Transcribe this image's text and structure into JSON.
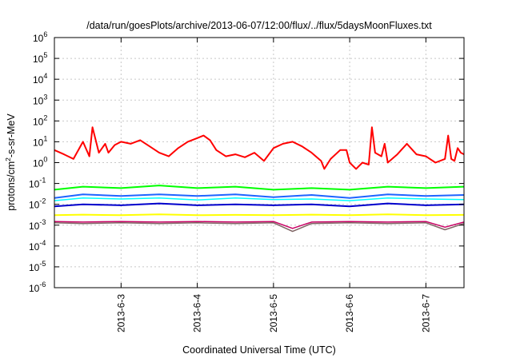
{
  "chart_data": {
    "type": "line",
    "title": "/data/run/goesPlots/archive/2013-06-07/12:00/flux/../flux/5daysMoonFluxes.txt",
    "xlabel": "Coordinated Universal Time (UTC)",
    "ylabel": "protons/cm2-s-sr-MeV",
    "ylabel_parts": {
      "pre": "protons/cm",
      "sup": "2",
      "post": "-s-sr-MeV"
    },
    "yscale": "log",
    "ylim": [
      "1e-6",
      "1e6"
    ],
    "xlim": [
      "2013-06-02 03:00",
      "2013-06-07 12:00"
    ],
    "grid": true,
    "x_ticks": [
      {
        "label": "2013-6-3",
        "at": "2013-06-03"
      },
      {
        "label": "2013-6-4",
        "at": "2013-06-04"
      },
      {
        "label": "2013-6-5",
        "at": "2013-06-05"
      },
      {
        "label": "2013-6-6",
        "at": "2013-06-06"
      },
      {
        "label": "2013-6-7",
        "at": "2013-06-07"
      }
    ],
    "y_ticks": [
      {
        "exp": 6,
        "base": "10",
        "sup": "6"
      },
      {
        "exp": 5,
        "base": "10",
        "sup": "5"
      },
      {
        "exp": 4,
        "base": "10",
        "sup": "4"
      },
      {
        "exp": 3,
        "base": "10",
        "sup": "3"
      },
      {
        "exp": 2,
        "base": "10",
        "sup": "2"
      },
      {
        "exp": 1,
        "base": "10",
        "sup": "1"
      },
      {
        "exp": 0,
        "base": "10",
        "sup": "0"
      },
      {
        "exp": -1,
        "base": "10",
        "sup": "-1"
      },
      {
        "exp": -2,
        "base": "10",
        "sup": "-2"
      },
      {
        "exp": -3,
        "base": "10",
        "sup": "-3"
      },
      {
        "exp": -4,
        "base": "10",
        "sup": "-4"
      },
      {
        "exp": -5,
        "base": "10",
        "sup": "-5"
      },
      {
        "exp": -6,
        "base": "10",
        "sup": "-6"
      }
    ],
    "series": [
      {
        "color": "#ff0000",
        "width": 2,
        "x": [
          "2013-06-02 03:00",
          "2013-06-02 06:00",
          "2013-06-02 09:00",
          "2013-06-02 12:00",
          "2013-06-02 14:00",
          "2013-06-02 15:00",
          "2013-06-02 17:00",
          "2013-06-02 19:00",
          "2013-06-02 20:00",
          "2013-06-02 22:00",
          "2013-06-03 00:00",
          "2013-06-03 03:00",
          "2013-06-03 06:00",
          "2013-06-03 09:00",
          "2013-06-03 12:00",
          "2013-06-03 15:00",
          "2013-06-03 18:00",
          "2013-06-03 21:00",
          "2013-06-04 00:00",
          "2013-06-04 02:00",
          "2013-06-04 04:00",
          "2013-06-04 06:00",
          "2013-06-04 09:00",
          "2013-06-04 12:00",
          "2013-06-04 15:00",
          "2013-06-04 18:00",
          "2013-06-04 21:00",
          "2013-06-05 00:00",
          "2013-06-05 03:00",
          "2013-06-05 06:00",
          "2013-06-05 09:00",
          "2013-06-05 12:00",
          "2013-06-05 15:00",
          "2013-06-05 16:00",
          "2013-06-05 18:00",
          "2013-06-05 21:00",
          "2013-06-05 23:00",
          "2013-06-06 00:00",
          "2013-06-06 02:00",
          "2013-06-06 04:00",
          "2013-06-06 06:00",
          "2013-06-06 07:00",
          "2013-06-06 08:00",
          "2013-06-06 10:00",
          "2013-06-06 11:00",
          "2013-06-06 12:00",
          "2013-06-06 15:00",
          "2013-06-06 18:00",
          "2013-06-06 21:00",
          "2013-06-07 00:00",
          "2013-06-07 03:00",
          "2013-06-07 06:00",
          "2013-06-07 07:00",
          "2013-06-07 08:00",
          "2013-06-07 09:00",
          "2013-06-07 10:00",
          "2013-06-07 11:00",
          "2013-06-07 12:00"
        ],
        "y": [
          4,
          2.5,
          1.5,
          10,
          2,
          50,
          3,
          8,
          3,
          7,
          10,
          8,
          12,
          6,
          3,
          2,
          5,
          10,
          15,
          20,
          12,
          4,
          2,
          2.5,
          1.8,
          3,
          1.2,
          5,
          8,
          10,
          6,
          3,
          1.2,
          0.5,
          1.5,
          4,
          4,
          1,
          0.5,
          1,
          0.8,
          50,
          3,
          2,
          8,
          1,
          2.5,
          8,
          2.5,
          2,
          1,
          1.5,
          20,
          1.5,
          1.2,
          5,
          3,
          2.5
        ]
      },
      {
        "color": "#00ff00",
        "width": 2,
        "x": [
          "2013-06-02 03:00",
          "2013-06-02 12:00",
          "2013-06-03 00:00",
          "2013-06-03 12:00",
          "2013-06-04 00:00",
          "2013-06-04 12:00",
          "2013-06-05 00:00",
          "2013-06-05 12:00",
          "2013-06-06 00:00",
          "2013-06-06 12:00",
          "2013-06-07 00:00",
          "2013-06-07 12:00"
        ],
        "y": [
          0.05,
          0.07,
          0.06,
          0.08,
          0.06,
          0.07,
          0.05,
          0.06,
          0.05,
          0.07,
          0.06,
          0.07
        ]
      },
      {
        "color": "#00ffff",
        "width": 1.5,
        "x": [
          "2013-06-02 03:00",
          "2013-06-02 12:00",
          "2013-06-03 00:00",
          "2013-06-03 12:00",
          "2013-06-04 00:00",
          "2013-06-04 12:00",
          "2013-06-05 00:00",
          "2013-06-05 12:00",
          "2013-06-06 00:00",
          "2013-06-06 12:00",
          "2013-06-07 00:00",
          "2013-06-07 12:00"
        ],
        "y": [
          0.015,
          0.02,
          0.018,
          0.02,
          0.016,
          0.02,
          0.017,
          0.018,
          0.015,
          0.02,
          0.018,
          0.017
        ]
      },
      {
        "color": "#1e64ff",
        "width": 2,
        "x": [
          "2013-06-02 03:00",
          "2013-06-02 12:00",
          "2013-06-03 00:00",
          "2013-06-03 12:00",
          "2013-06-04 00:00",
          "2013-06-04 12:00",
          "2013-06-05 00:00",
          "2013-06-05 12:00",
          "2013-06-06 00:00",
          "2013-06-06 12:00",
          "2013-06-07 00:00",
          "2013-06-07 12:00"
        ],
        "y": [
          0.02,
          0.03,
          0.025,
          0.03,
          0.025,
          0.03,
          0.022,
          0.028,
          0.02,
          0.03,
          0.025,
          0.028
        ]
      },
      {
        "color": "#0000cc",
        "width": 2,
        "x": [
          "2013-06-02 03:00",
          "2013-06-02 12:00",
          "2013-06-03 00:00",
          "2013-06-03 12:00",
          "2013-06-04 00:00",
          "2013-06-04 12:00",
          "2013-06-05 00:00",
          "2013-06-05 12:00",
          "2013-06-06 00:00",
          "2013-06-06 12:00",
          "2013-06-07 00:00",
          "2013-06-07 12:00"
        ],
        "y": [
          0.008,
          0.01,
          0.009,
          0.011,
          0.009,
          0.01,
          0.009,
          0.01,
          0.008,
          0.011,
          0.009,
          0.01
        ]
      },
      {
        "color": "#ffff00",
        "width": 2,
        "x": [
          "2013-06-02 03:00",
          "2013-06-02 12:00",
          "2013-06-03 00:00",
          "2013-06-03 12:00",
          "2013-06-04 00:00",
          "2013-06-04 12:00",
          "2013-06-05 00:00",
          "2013-06-05 12:00",
          "2013-06-06 00:00",
          "2013-06-06 12:00",
          "2013-06-07 00:00",
          "2013-06-07 12:00"
        ],
        "y": [
          0.003,
          0.0032,
          0.003,
          0.0033,
          0.003,
          0.0031,
          0.003,
          0.0032,
          0.003,
          0.0033,
          0.003,
          0.0031
        ]
      },
      {
        "color": "#c80064",
        "width": 1.5,
        "x": [
          "2013-06-02 03:00",
          "2013-06-02 12:00",
          "2013-06-03 00:00",
          "2013-06-03 12:00",
          "2013-06-04 00:00",
          "2013-06-04 12:00",
          "2013-06-05 00:00",
          "2013-06-05 06:00",
          "2013-06-05 12:00",
          "2013-06-06 00:00",
          "2013-06-06 12:00",
          "2013-06-07 00:00",
          "2013-06-07 06:00",
          "2013-06-07 12:00"
        ],
        "y": [
          0.0015,
          0.0014,
          0.0015,
          0.0014,
          0.0015,
          0.0014,
          0.0015,
          0.0007,
          0.0014,
          0.0015,
          0.0014,
          0.0015,
          0.0008,
          0.0014
        ]
      },
      {
        "color": "#7f6464",
        "width": 1.5,
        "x": [
          "2013-06-02 03:00",
          "2013-06-02 12:00",
          "2013-06-03 00:00",
          "2013-06-03 12:00",
          "2013-06-04 00:00",
          "2013-06-04 12:00",
          "2013-06-05 00:00",
          "2013-06-05 06:00",
          "2013-06-05 12:00",
          "2013-06-06 00:00",
          "2013-06-06 12:00",
          "2013-06-07 00:00",
          "2013-06-07 06:00",
          "2013-06-07 12:00"
        ],
        "y": [
          0.0013,
          0.0012,
          0.0013,
          0.0012,
          0.0013,
          0.0012,
          0.0013,
          0.0005,
          0.0012,
          0.0013,
          0.0012,
          0.0013,
          0.0006,
          0.0012
        ]
      }
    ]
  }
}
